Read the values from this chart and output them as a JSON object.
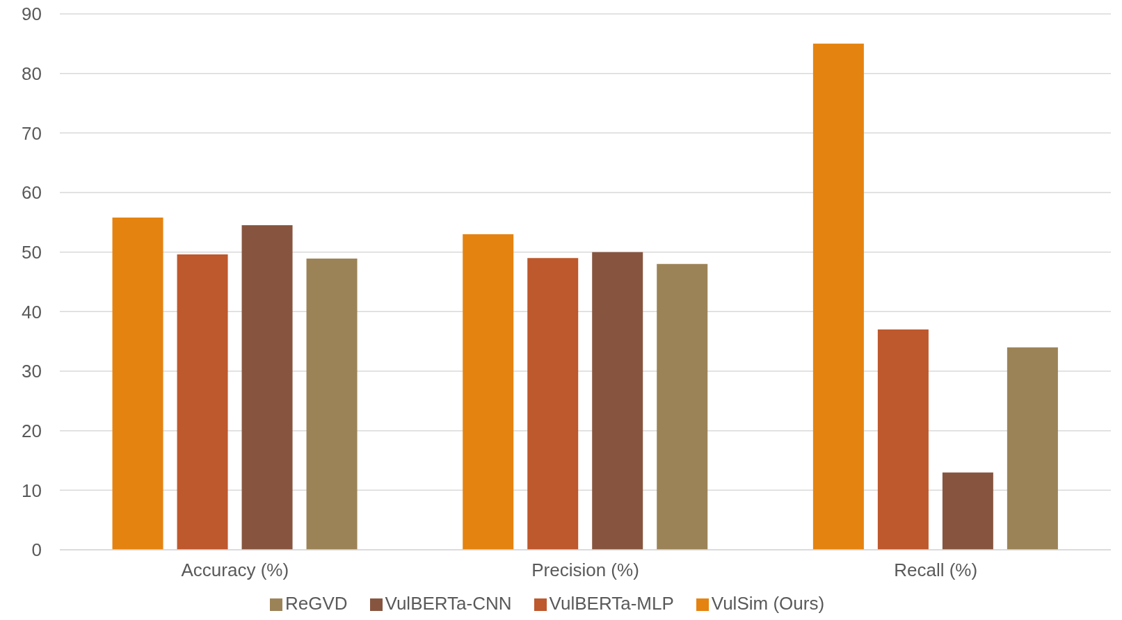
{
  "chart_data": {
    "type": "bar",
    "categories": [
      "Accuracy (%)",
      "Precision (%)",
      "Recall (%)"
    ],
    "series": [
      {
        "name": "VulSim (Ours)",
        "color": "#e58310",
        "values": [
          55.8,
          53,
          85
        ]
      },
      {
        "name": "VulBERTa-MLP",
        "color": "#be582d",
        "values": [
          49.6,
          49,
          37
        ]
      },
      {
        "name": "VulBERTa-CNN",
        "color": "#87553f",
        "values": [
          54.5,
          50,
          13
        ]
      },
      {
        "name": "ReGVD",
        "color": "#9c8357",
        "values": [
          48.9,
          48,
          34
        ]
      }
    ],
    "ylim": [
      0,
      90
    ],
    "yticks": [
      0,
      10,
      20,
      30,
      40,
      50,
      60,
      70,
      80,
      90
    ],
    "grid": "y",
    "legend": "bottom"
  }
}
